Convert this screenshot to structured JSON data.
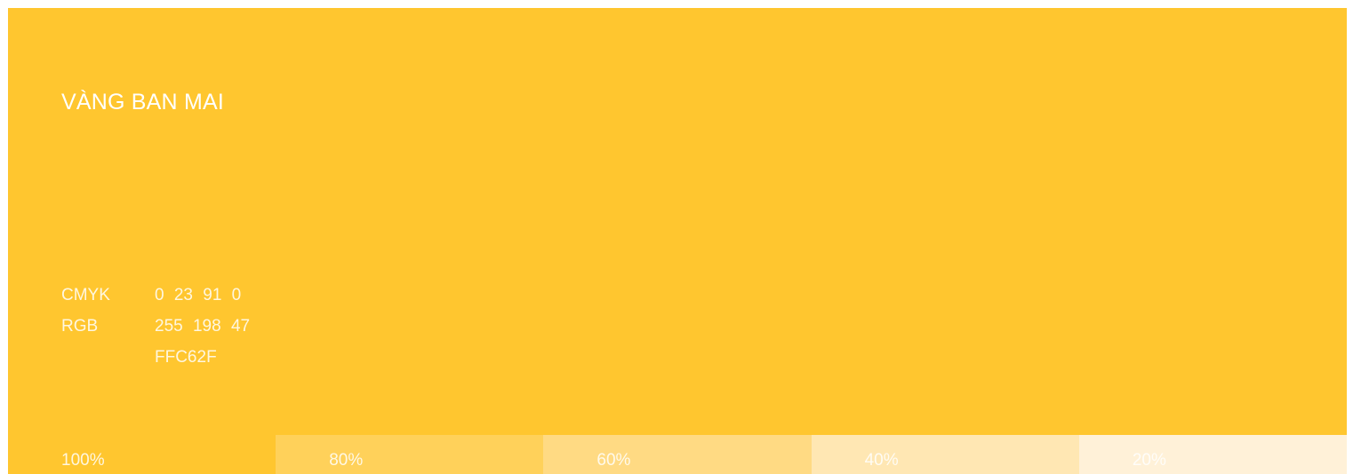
{
  "swatch": {
    "name": "VÀNG BAN MAI",
    "color": "#FFC62F",
    "specs": [
      {
        "label": "CMYK",
        "value": "0 23 91 0"
      },
      {
        "label": "RGB",
        "value": "255 198 47"
      },
      {
        "label": "",
        "value": "FFC62F"
      }
    ],
    "tints": [
      {
        "label": "100%",
        "color": "#FFC62F"
      },
      {
        "label": "80%",
        "color": "#FFD15A"
      },
      {
        "label": "60%",
        "color": "#FFDA83"
      },
      {
        "label": "40%",
        "color": "#FFE7B3"
      },
      {
        "label": "20%",
        "color": "#FFF1D8"
      }
    ]
  }
}
